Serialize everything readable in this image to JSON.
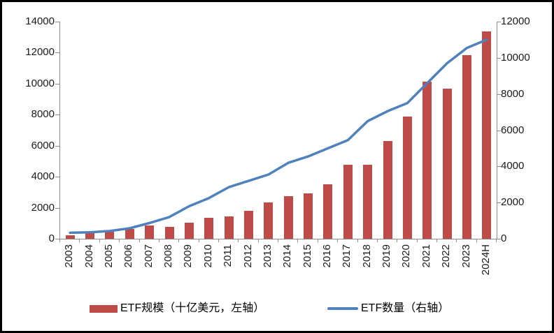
{
  "chart_data": {
    "type": "combo-bar-line",
    "title": "",
    "xlabel": "",
    "ylabel_left": "",
    "ylabel_right": "",
    "grid": "off",
    "legend_position": "bottom",
    "categories": [
      "2003",
      "2004",
      "2005",
      "2006",
      "2007",
      "2008",
      "2009",
      "2010",
      "2011",
      "2012",
      "2013",
      "2014",
      "2015",
      "2016",
      "2017",
      "2018",
      "2019",
      "2020",
      "2021",
      "2022",
      "2023",
      "2024H"
    ],
    "series": [
      {
        "name": "ETF规模（十亿美元，左轴）",
        "type": "bar",
        "axis": "left",
        "color": "#be4b48",
        "values": [
          240,
          340,
          460,
          640,
          880,
          790,
          1060,
          1360,
          1430,
          1810,
          2330,
          2740,
          2930,
          3500,
          4780,
          4780,
          6310,
          7900,
          10150,
          9690,
          11820,
          13370
        ]
      },
      {
        "name": "ETF数量（右轴）",
        "type": "line",
        "axis": "right",
        "color": "#4f81bd",
        "values": [
          330,
          360,
          430,
          580,
          870,
          1200,
          1800,
          2250,
          2850,
          3200,
          3550,
          4200,
          4550,
          5000,
          5450,
          6500,
          7050,
          7500,
          8600,
          9700,
          10550,
          11000
        ]
      }
    ],
    "left_axis": {
      "min": 0,
      "max": 14000,
      "step": 2000,
      "ticks": [
        "14000",
        "12000",
        "10000",
        "8000",
        "6000",
        "4000",
        "2000",
        "0"
      ]
    },
    "right_axis": {
      "min": 0,
      "max": 12000,
      "step": 2000,
      "ticks": [
        "12000",
        "10000",
        "8000",
        "6000",
        "4000",
        "2000",
        "0"
      ]
    }
  },
  "colors": {
    "bar": "#be4b48",
    "line": "#4f81bd",
    "axis": "#8c8c8c",
    "frame": "#000000",
    "background": "#ffffff"
  }
}
